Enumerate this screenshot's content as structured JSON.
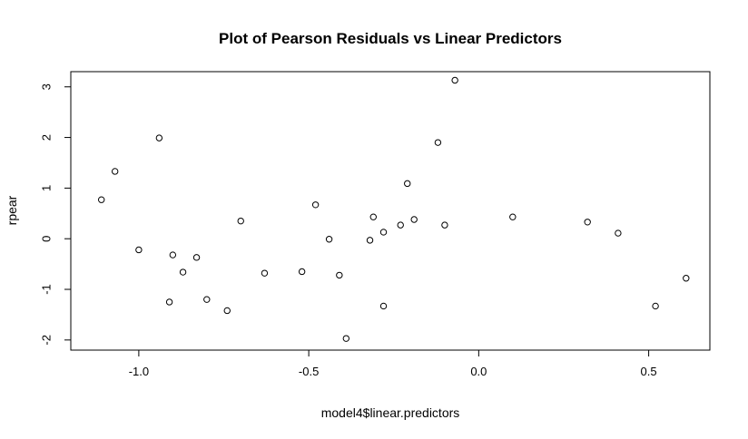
{
  "chart_data": {
    "type": "scatter",
    "title": "Plot of Pearson Residuals vs Linear Predictors",
    "xlabel": "model4$linear.predictors",
    "ylabel": "rpear",
    "xlim": [
      -1.2,
      0.68
    ],
    "ylim": [
      -2.2,
      3.3
    ],
    "xticks": [
      -1.0,
      -0.5,
      0.0,
      0.5
    ],
    "xtick_labels": [
      "-1.0",
      "-0.5",
      "0.0",
      "0.5"
    ],
    "yticks": [
      -2,
      -1,
      0,
      1,
      2,
      3
    ],
    "ytick_labels": [
      "-2",
      "-1",
      "0",
      "1",
      "2",
      "3"
    ],
    "grid": false,
    "legend": "none",
    "marker": "open-circle",
    "points": [
      {
        "x": -1.11,
        "y": 0.77
      },
      {
        "x": -1.07,
        "y": 1.33
      },
      {
        "x": -1.0,
        "y": -0.22
      },
      {
        "x": -0.94,
        "y": 1.99
      },
      {
        "x": -0.91,
        "y": -1.25
      },
      {
        "x": -0.9,
        "y": -0.32
      },
      {
        "x": -0.87,
        "y": -0.66
      },
      {
        "x": -0.83,
        "y": -0.37
      },
      {
        "x": -0.8,
        "y": -1.2
      },
      {
        "x": -0.74,
        "y": -1.42
      },
      {
        "x": -0.7,
        "y": 0.35
      },
      {
        "x": -0.63,
        "y": -0.68
      },
      {
        "x": -0.52,
        "y": -0.65
      },
      {
        "x": -0.48,
        "y": 0.67
      },
      {
        "x": -0.44,
        "y": -0.01
      },
      {
        "x": -0.41,
        "y": -0.72
      },
      {
        "x": -0.39,
        "y": -1.97
      },
      {
        "x": -0.32,
        "y": -0.03
      },
      {
        "x": -0.31,
        "y": 0.43
      },
      {
        "x": -0.28,
        "y": 0.13
      },
      {
        "x": -0.28,
        "y": -1.33
      },
      {
        "x": -0.23,
        "y": 0.27
      },
      {
        "x": -0.21,
        "y": 1.09
      },
      {
        "x": -0.19,
        "y": 0.38
      },
      {
        "x": -0.12,
        "y": 1.9
      },
      {
        "x": -0.1,
        "y": 0.27
      },
      {
        "x": -0.07,
        "y": 3.13
      },
      {
        "x": 0.1,
        "y": 0.43
      },
      {
        "x": 0.32,
        "y": 0.33
      },
      {
        "x": 0.41,
        "y": 0.11
      },
      {
        "x": 0.52,
        "y": -1.33
      },
      {
        "x": 0.61,
        "y": -0.78
      }
    ]
  }
}
